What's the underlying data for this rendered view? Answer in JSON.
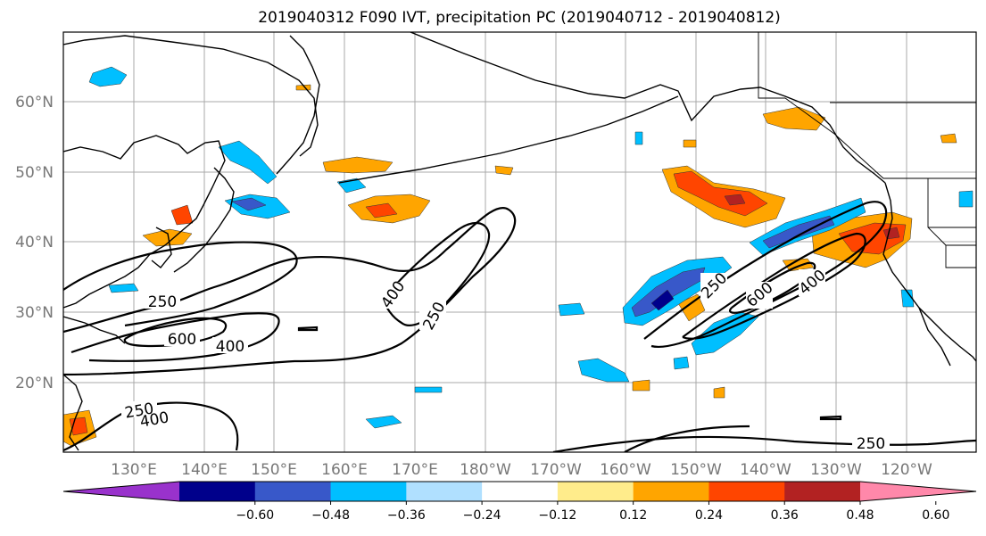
{
  "title": "2019040312 F090 IVT, precipitation PC (2019040712 - 2019040812)",
  "lon_labels": [
    "130°E",
    "140°E",
    "150°E",
    "160°E",
    "170°E",
    "180°W",
    "170°W",
    "160°W",
    "150°W",
    "140°W",
    "130°W",
    "120°W"
  ],
  "lat_labels": [
    "60°N",
    "50°N",
    "40°N",
    "30°N",
    "20°N"
  ],
  "colorbar": {
    "ticks": [
      "−0.60",
      "−0.48",
      "−0.36",
      "−0.24",
      "−0.12",
      "0.12",
      "0.24",
      "0.36",
      "0.48",
      "0.60"
    ],
    "colors": [
      "#9932cc",
      "#00008b",
      "#3858c9",
      "#00bfff",
      "#b0e0ff",
      "#ffffff",
      "#ffec8b",
      "#ffa500",
      "#ff4500",
      "#b22222",
      "#ff88aa"
    ]
  },
  "contour_labels": [
    {
      "text": "250"
    },
    {
      "text": "600"
    },
    {
      "text": "400"
    },
    {
      "text": "400"
    },
    {
      "text": "250"
    },
    {
      "text": "250"
    },
    {
      "text": "600"
    },
    {
      "text": "400"
    },
    {
      "text": "250"
    },
    {
      "text": "400"
    },
    {
      "text": "250"
    }
  ]
}
